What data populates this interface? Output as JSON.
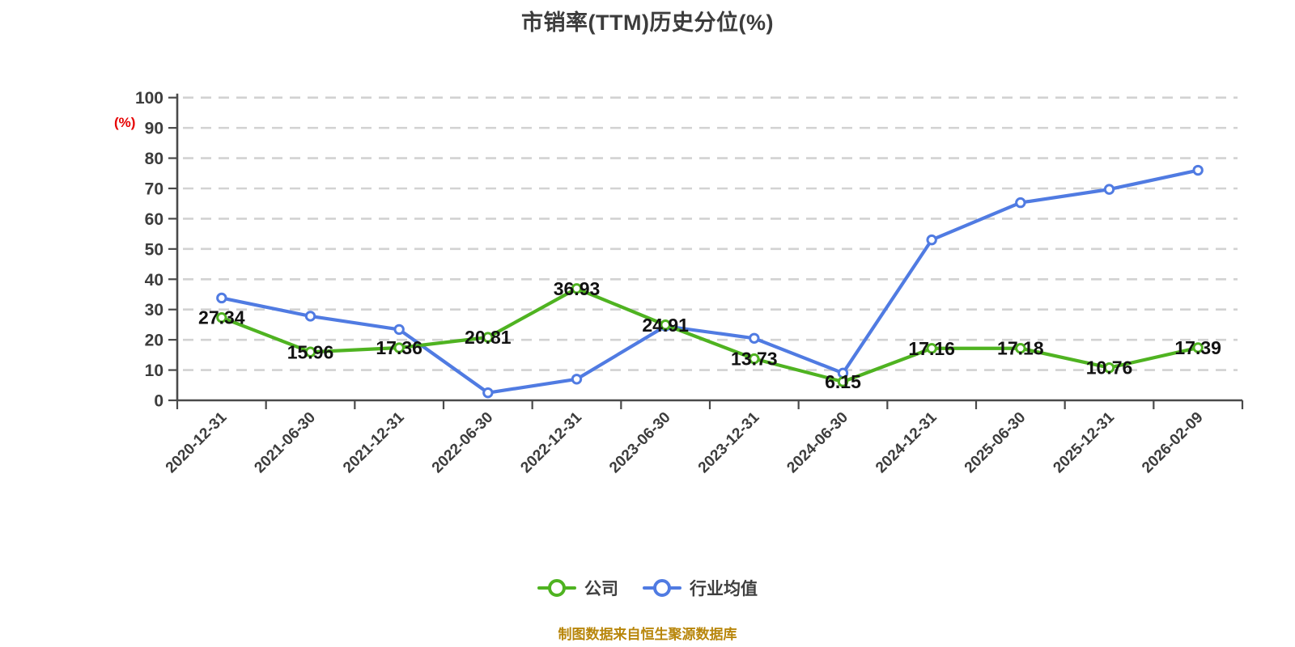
{
  "title": "市销率(TTM)历史分位(%)",
  "y_unit_label": "(%)",
  "footer_note": "制图数据来自恒生聚源数据库",
  "legend": {
    "items": [
      {
        "label": "公司",
        "color": "#4fb321"
      },
      {
        "label": "行业均值",
        "color": "#507be2"
      }
    ]
  },
  "colors": {
    "company_line": "#4fb321",
    "industry_line": "#507be2",
    "grid_line": "#d2d2d2",
    "axis_line": "#4a4a4a",
    "tick_label": "#3c3c3c",
    "data_label": "#121212",
    "title": "#3c3c3c",
    "unit_label": "#e60000",
    "footer": "#b8860b",
    "marker_fill": "#ffffff"
  },
  "chart_data": {
    "type": "line",
    "title": "市销率(TTM)历史分位(%)",
    "ylabel": "(%)",
    "ylim": [
      0,
      100
    ],
    "y_ticks": [
      0,
      10,
      20,
      30,
      40,
      50,
      60,
      70,
      80,
      90,
      100
    ],
    "grid": "horizontal dashed",
    "legend_position": "bottom",
    "categories": [
      "2020-12-31",
      "2021-06-30",
      "2021-12-31",
      "2022-06-30",
      "2022-12-31",
      "2023-06-30",
      "2023-12-31",
      "2024-06-30",
      "2024-12-31",
      "2025-06-30",
      "2025-12-31",
      "2026-02-09"
    ],
    "series": [
      {
        "name": "公司",
        "color": "#4fb321",
        "values": [
          27.34,
          15.96,
          17.36,
          20.81,
          36.93,
          24.91,
          13.73,
          6.15,
          17.16,
          17.18,
          10.76,
          17.39
        ],
        "labels_shown": true
      },
      {
        "name": "行业均值",
        "color": "#507be2",
        "values": [
          33.8,
          27.8,
          23.4,
          2.5,
          7.0,
          24.5,
          20.5,
          9.0,
          53.0,
          65.3,
          69.7,
          76.0
        ],
        "labels_shown": false,
        "values_estimated_from_pixels": true
      }
    ]
  }
}
